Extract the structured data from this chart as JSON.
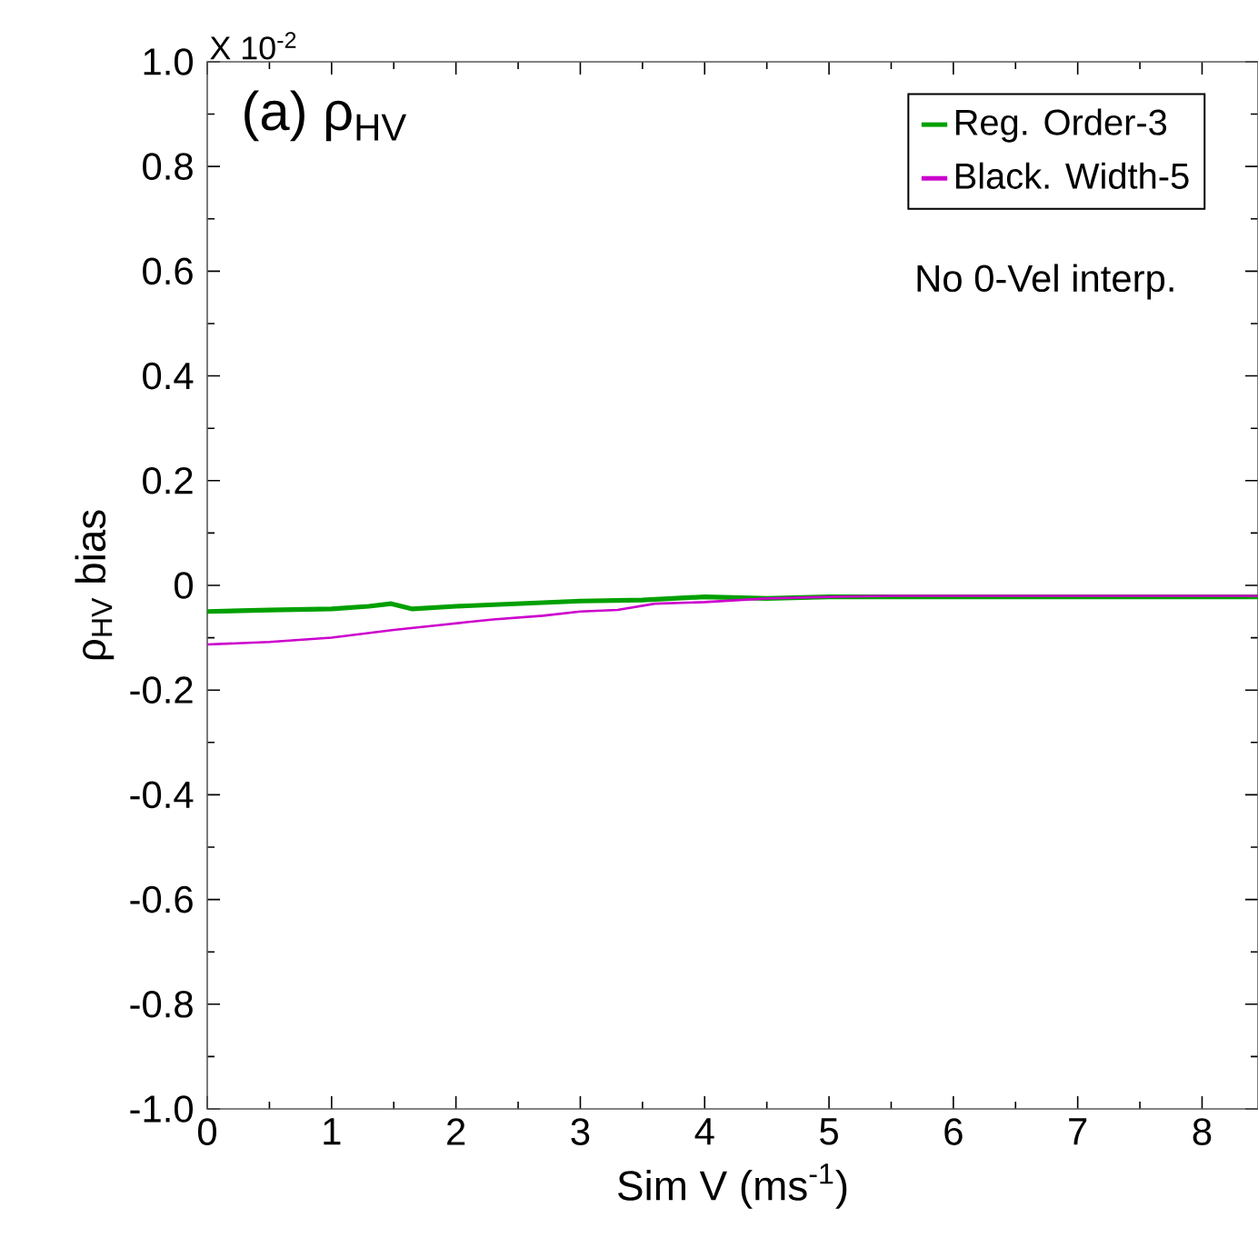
{
  "chart_data": {
    "type": "line",
    "title": "(a)  ρ$_{HV}$",
    "xlabel": "Sim V  (ms$^{-1}$)",
    "ylabel": "ρ$_{HV}$ bias",
    "annotations": [
      "X 10$^{-2}$",
      "No 0-Vel interp."
    ],
    "xlim": [
      0,
      8.45
    ],
    "xticks": [
      0,
      1,
      2,
      3,
      4,
      5,
      6,
      7,
      8
    ],
    "ylim": [
      -1.0,
      1.0
    ],
    "yticks": [
      {
        "value": -1.0,
        "label": "-1.0"
      },
      {
        "value": -0.8,
        "label": "-0.8"
      },
      {
        "value": -0.6,
        "label": "-0.6"
      },
      {
        "value": -0.4,
        "label": "-0.4"
      },
      {
        "value": -0.2,
        "label": "-0.2"
      },
      {
        "value": 0,
        "label": "0"
      },
      {
        "value": 0.2,
        "label": "0.2"
      },
      {
        "value": 0.4,
        "label": "0.4"
      },
      {
        "value": 0.6,
        "label": "0.6"
      },
      {
        "value": 0.8,
        "label": "0.8"
      },
      {
        "value": 1.0,
        "label": "1.0"
      }
    ],
    "legend": "top right",
    "series": [
      {
        "name": "Reg. Order-3",
        "color": "#00a000",
        "x": [
          0,
          0.5,
          1.0,
          1.3,
          1.48,
          1.65,
          2.0,
          2.5,
          3.0,
          3.5,
          4.0,
          4.5,
          5.0,
          6.0,
          7.0,
          8.45
        ],
        "values": [
          -0.05,
          -0.047,
          -0.045,
          -0.04,
          -0.035,
          -0.045,
          -0.04,
          -0.035,
          -0.03,
          -0.028,
          -0.022,
          -0.025,
          -0.022,
          -0.022,
          -0.022,
          -0.022
        ]
      },
      {
        "name": "Black. Width-5",
        "color": "#cc00cc",
        "x": [
          0,
          0.5,
          1.0,
          1.5,
          1.9,
          2.3,
          2.7,
          3.0,
          3.3,
          3.6,
          4.0,
          4.5,
          5.0,
          5.5,
          6.0,
          7.0,
          8.45
        ],
        "values": [
          -0.113,
          -0.108,
          -0.1,
          -0.085,
          -0.075,
          -0.065,
          -0.058,
          -0.05,
          -0.047,
          -0.035,
          -0.032,
          -0.025,
          -0.022,
          -0.02,
          -0.02,
          -0.02,
          -0.02
        ]
      }
    ]
  }
}
